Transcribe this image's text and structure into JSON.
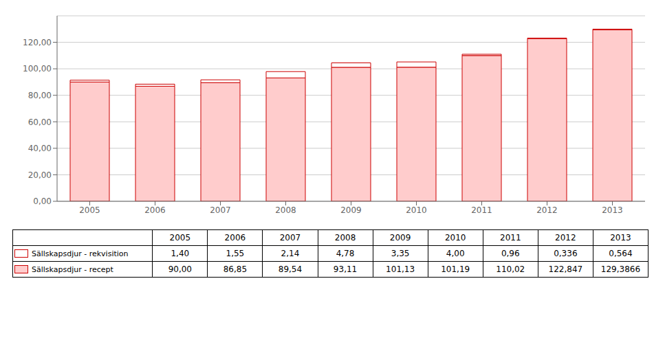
{
  "chart_data": {
    "type": "bar",
    "stacked": true,
    "categories": [
      "2005",
      "2006",
      "2007",
      "2008",
      "2009",
      "2010",
      "2011",
      "2012",
      "2013"
    ],
    "color": "#cc0000",
    "ylim": [
      0,
      140
    ],
    "yticks": [
      {
        "value": 0,
        "label": "0,00"
      },
      {
        "value": 20,
        "label": "20,00"
      },
      {
        "value": 40,
        "label": "40,00"
      },
      {
        "value": 60,
        "label": "60,00"
      },
      {
        "value": 80,
        "label": "80,00"
      },
      {
        "value": 100,
        "label": "100,00"
      },
      {
        "value": 120,
        "label": "120,00"
      }
    ],
    "grid": true,
    "series": [
      {
        "name": "Sällskapsdjur - recept",
        "color": "#ffcccc",
        "values": [
          90.0,
          86.85,
          89.54,
          93.11,
          101.13,
          101.19,
          110.02,
          122.847,
          129.3866
        ],
        "value_labels": [
          "90,00",
          "86,85",
          "89,54",
          "93,11",
          "101,13",
          "101,19",
          "110,02",
          "122,847",
          "129,3866"
        ]
      },
      {
        "name": "Sällskapsdjur - rekvisition",
        "color": "#ffffff",
        "values": [
          1.4,
          1.55,
          2.14,
          4.78,
          3.35,
          4.0,
          0.96,
          0.336,
          0.564
        ],
        "value_labels": [
          "1,40",
          "1,55",
          "2,14",
          "4,78",
          "3,35",
          "4,00",
          "0,96",
          "0,336",
          "0,564"
        ]
      }
    ]
  }
}
